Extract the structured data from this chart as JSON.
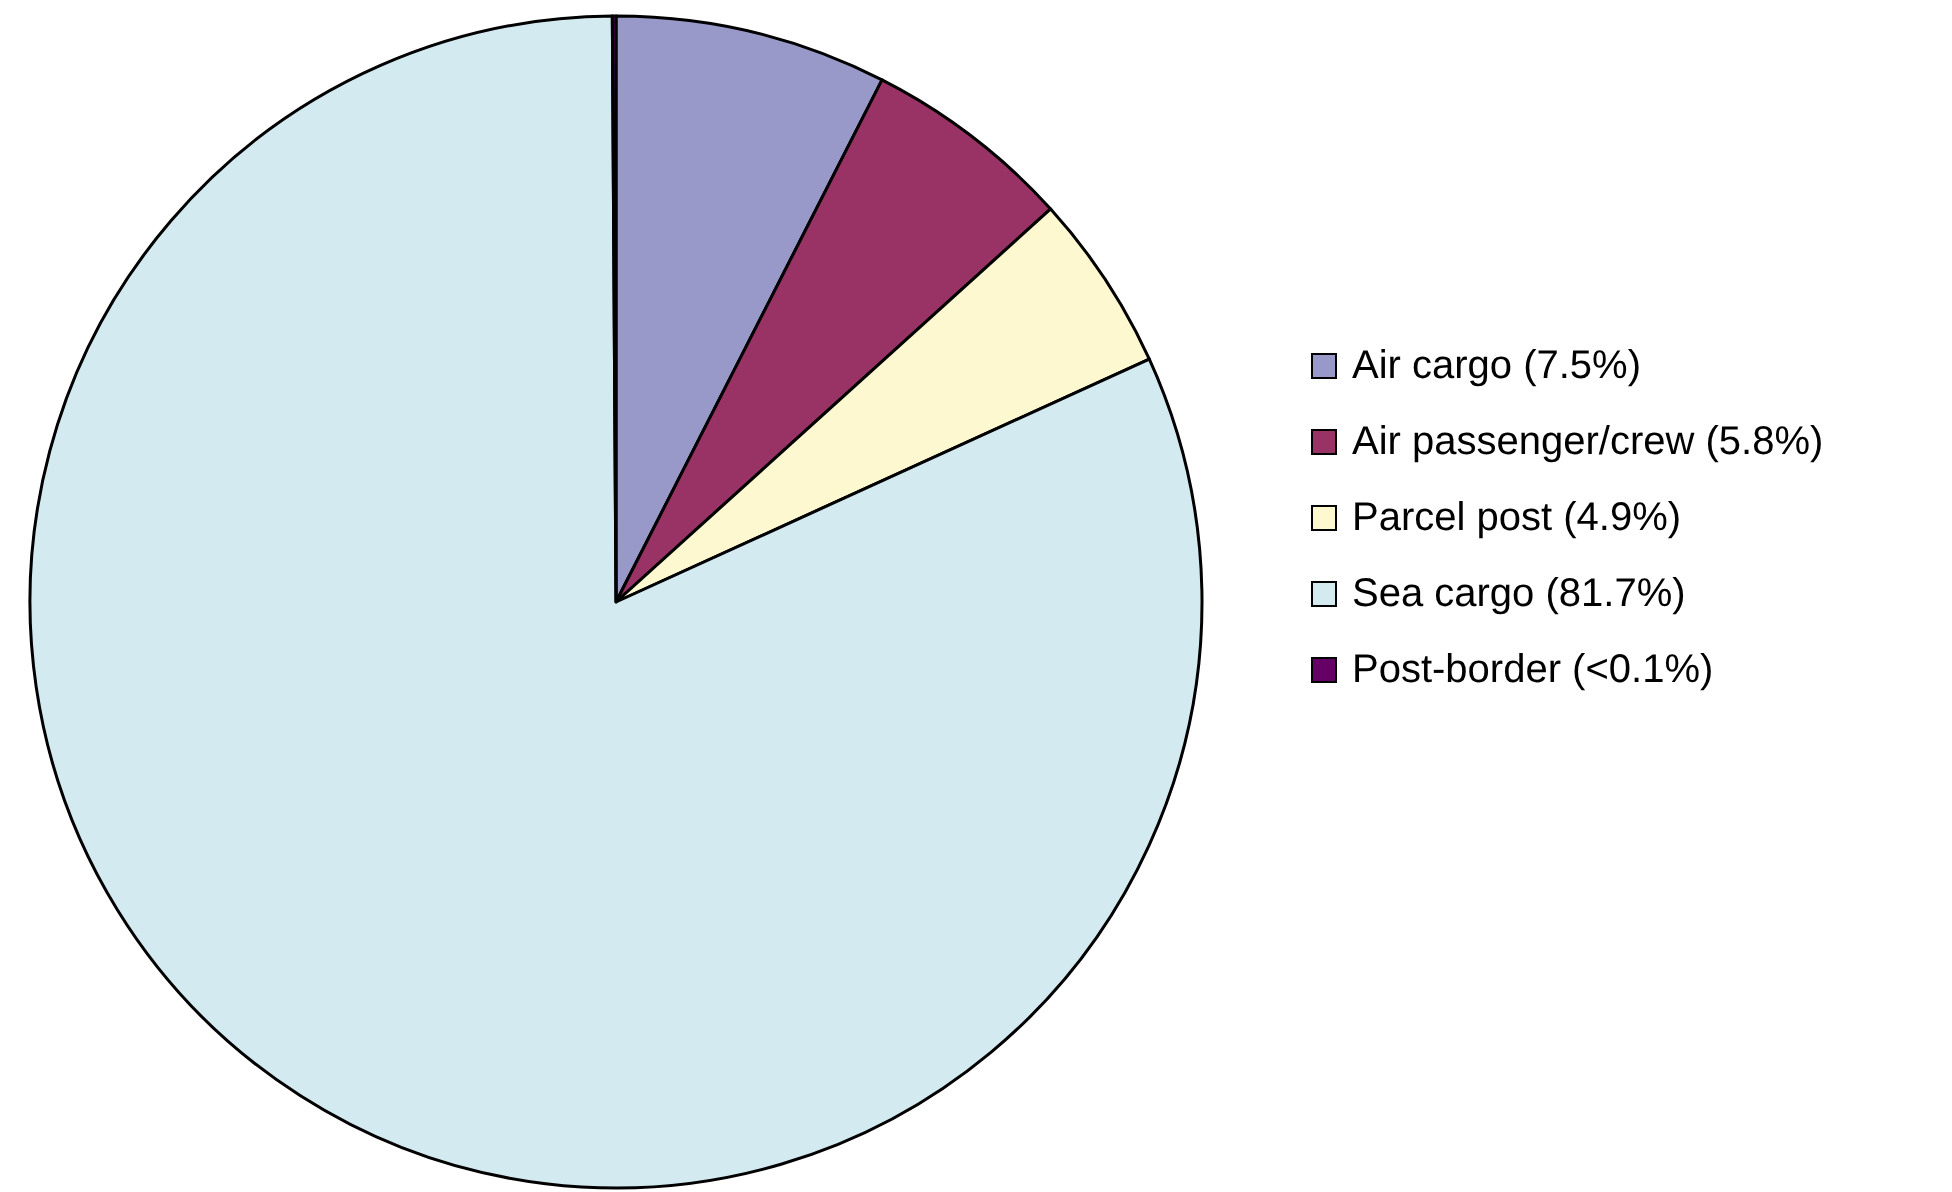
{
  "chart_data": {
    "type": "pie",
    "categories": [
      "Air cargo (7.5%)",
      "Air passenger/crew (5.8%)",
      "Parcel post (4.9%)",
      "Sea cargo (81.7%)",
      "Post-border (<0.1%)"
    ],
    "values": [
      7.5,
      5.8,
      4.9,
      81.7,
      0.1
    ],
    "colors": [
      "#9999c9",
      "#993366",
      "#fdf8cf",
      "#d3eaf1",
      "#660066"
    ],
    "legend": "right"
  }
}
